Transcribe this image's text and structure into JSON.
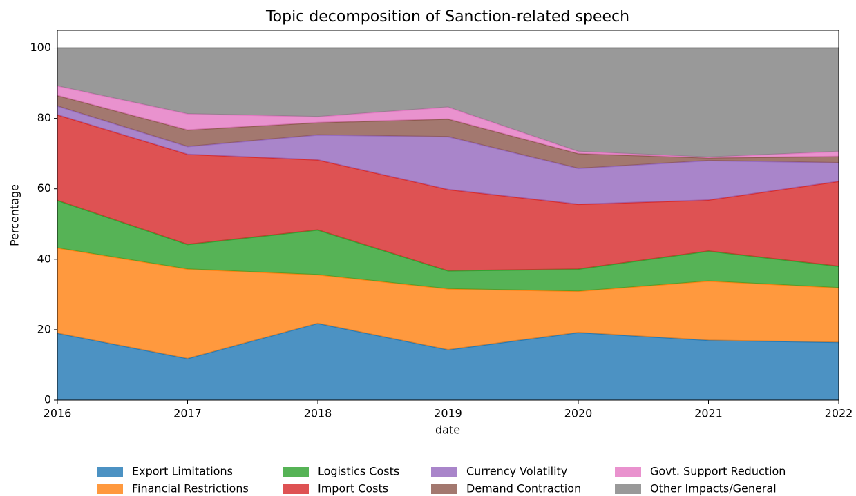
{
  "chart_data": {
    "type": "stacked_area",
    "title": "Topic decomposition of Sanction-related speech",
    "x_label": "date",
    "y_label": "Percentage",
    "x": [
      2016,
      2017,
      2018,
      2019,
      2020,
      2021,
      2022
    ],
    "xlim": [
      2016,
      2022
    ],
    "xticks": [
      2016,
      2017,
      2018,
      2019,
      2020,
      2021,
      2022
    ],
    "ylim": [
      0,
      105
    ],
    "yticks": [
      0,
      20,
      40,
      60,
      80,
      100
    ],
    "legend": "bottom",
    "series": [
      {
        "name": "Export Limitations",
        "color": "#1f77b4",
        "values": [
          19,
          11.8,
          21.8,
          14.3,
          19.2,
          17,
          16.4
        ]
      },
      {
        "name": "Financial Restrictions",
        "color": "#ff7f0e",
        "values": [
          24.2,
          25.4,
          13.8,
          17.3,
          11.7,
          16.8,
          15.5
        ]
      },
      {
        "name": "Logistics Costs",
        "color": "#2ca02c",
        "values": [
          13.5,
          7,
          12.7,
          5.1,
          6.3,
          8.5,
          6.1
        ]
      },
      {
        "name": "Import Costs",
        "color": "#d62728",
        "values": [
          24.3,
          25.6,
          19.9,
          23.1,
          18.4,
          14.5,
          24.1
        ]
      },
      {
        "name": "Currency Volatility",
        "color": "#9467bd",
        "values": [
          2.5,
          2.2,
          7.1,
          15,
          10.2,
          11.2,
          5.3
        ]
      },
      {
        "name": "Demand Contraction",
        "color": "#8c564b",
        "values": [
          3,
          4.7,
          3.5,
          5,
          4.2,
          0.8,
          1.8
        ]
      },
      {
        "name": "Govt. Support Reduction",
        "color": "#e377c2",
        "values": [
          2.7,
          4.6,
          1.7,
          3.4,
          0.6,
          0.2,
          1.4
        ]
      },
      {
        "name": "Other Impacts/General",
        "color": "#7f7f7f",
        "values": [
          10.8,
          18.7,
          19.5,
          16.8,
          29.4,
          31,
          29.4
        ]
      }
    ]
  }
}
